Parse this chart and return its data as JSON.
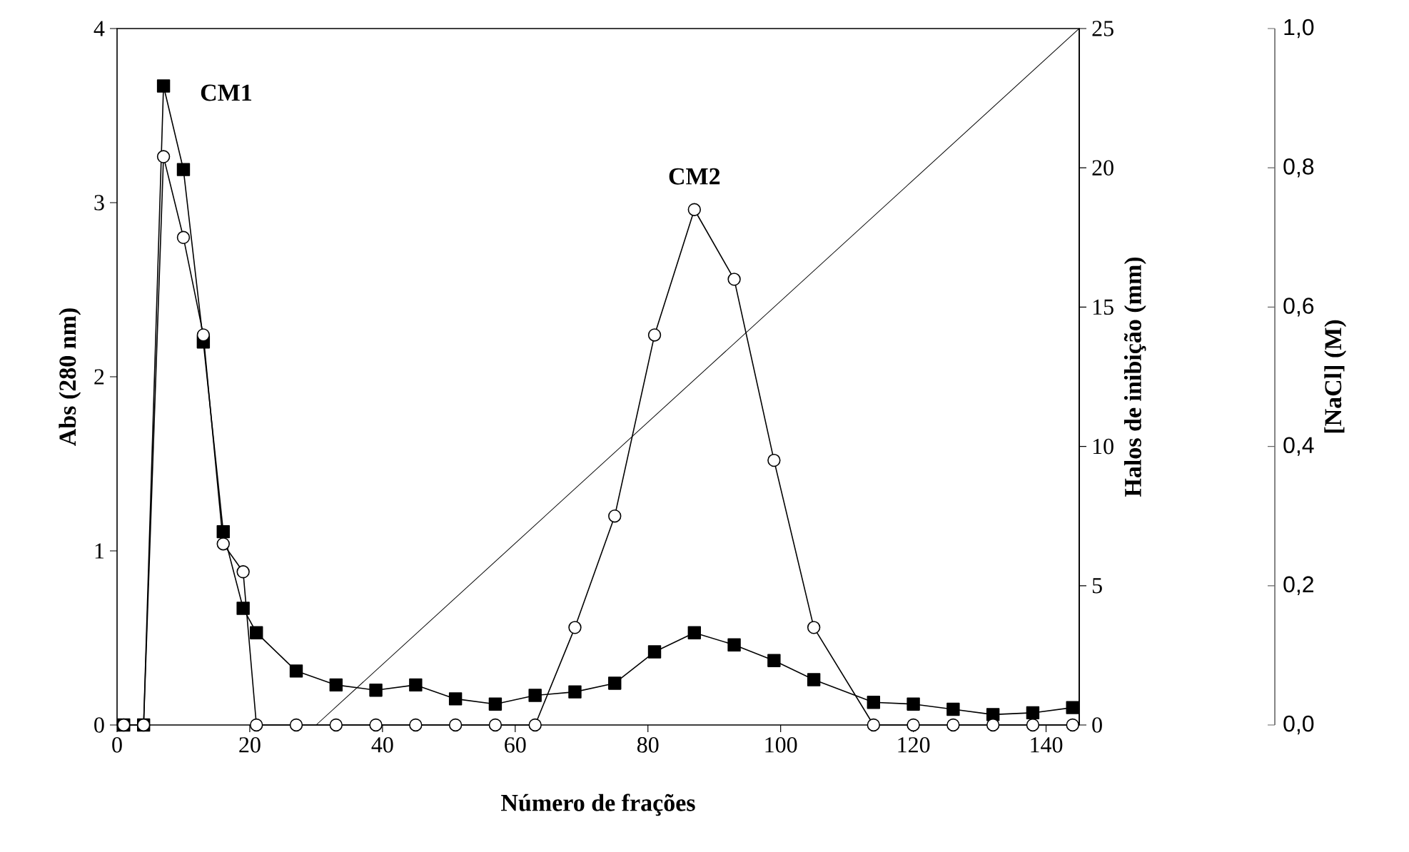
{
  "chart_data": {
    "type": "line",
    "xlabel": "Número de frações",
    "ylabel": "Abs (280 nm)",
    "y2label": "Halos de inibição (mm)",
    "y3label": "[NaCl] (M)",
    "xlim": [
      0,
      145
    ],
    "xticks": [
      0,
      20,
      40,
      60,
      80,
      100,
      120,
      140
    ],
    "ylim": [
      0,
      4
    ],
    "yticks": [
      0,
      1,
      2,
      3,
      4
    ],
    "y2lim": [
      0,
      25
    ],
    "y2ticks": [
      0,
      5,
      10,
      15,
      20,
      25
    ],
    "y3lim": [
      0,
      1
    ],
    "y3ticks": [
      {
        "value": 0,
        "label": "0,0"
      },
      {
        "value": 0.2,
        "label": "0,2"
      },
      {
        "value": 0.4,
        "label": "0,4"
      },
      {
        "value": 0.6,
        "label": "0,6"
      },
      {
        "value": 0.8,
        "label": "0,8"
      },
      {
        "value": 1,
        "label": "1,0"
      }
    ],
    "series": [
      {
        "color": "#000000",
        "marker": "square",
        "x": [
          1,
          4,
          7,
          10,
          13,
          16,
          19,
          21,
          27,
          33,
          39,
          45,
          51,
          57,
          63,
          69,
          75,
          81,
          87,
          93,
          99,
          105,
          114,
          120,
          126,
          132,
          138,
          144
        ],
        "values": [
          0,
          0,
          3.67,
          3.19,
          2.2,
          1.11,
          0.67,
          0.53,
          0.31,
          0.23,
          0.2,
          0.23,
          0.15,
          0.12,
          0.17,
          0.19,
          0.24,
          0.42,
          0.53,
          0.46,
          0.37,
          0.26,
          0.13,
          0.12,
          0.09,
          0.06,
          0.07,
          0.1
        ]
      },
      {
        "color": "#000000",
        "marker": "circle",
        "axis": "y2",
        "x": [
          1,
          4,
          7,
          10,
          13,
          16,
          19,
          21,
          27,
          33,
          39,
          45,
          51,
          57,
          63,
          69,
          75,
          81,
          87,
          93,
          99,
          105,
          114,
          120,
          126,
          132,
          138,
          144
        ],
        "values": [
          0,
          0,
          20.4,
          17.5,
          14,
          6.5,
          5.5,
          0,
          0,
          0,
          0,
          0,
          0,
          0,
          0,
          3.5,
          7.5,
          14,
          18.5,
          16,
          9.5,
          3.5,
          0,
          0,
          0,
          0,
          0,
          0
        ]
      },
      {
        "color": "#000000",
        "marker": "none",
        "axis": "y3",
        "x": [
          30,
          145
        ],
        "values": [
          0,
          1
        ]
      }
    ],
    "annotations": [
      {
        "text": "CM1",
        "x": 7,
        "y": 3.67
      },
      {
        "text": "CM2",
        "x": 87,
        "y": 2.96
      }
    ]
  }
}
